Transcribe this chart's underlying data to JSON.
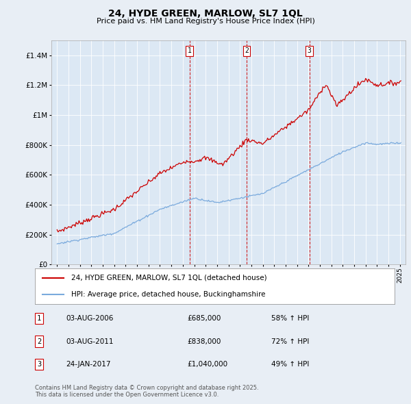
{
  "title": "24, HYDE GREEN, MARLOW, SL7 1QL",
  "subtitle": "Price paid vs. HM Land Registry's House Price Index (HPI)",
  "background_color": "#e8eef5",
  "plot_bg_color": "#dce8f4",
  "red_line_color": "#cc0000",
  "blue_line_color": "#7aaadd",
  "sale_markers": [
    {
      "label": "1",
      "date": "03-AUG-2006",
      "price": 685000,
      "pct": "58% ↑ HPI",
      "x_year": 2006.58
    },
    {
      "label": "2",
      "date": "03-AUG-2011",
      "price": 838000,
      "pct": "72% ↑ HPI",
      "x_year": 2011.58
    },
    {
      "label": "3",
      "date": "24-JAN-2017",
      "price": 1040000,
      "pct": "49% ↑ HPI",
      "x_year": 2017.07
    }
  ],
  "legend_entries": [
    "24, HYDE GREEN, MARLOW, SL7 1QL (detached house)",
    "HPI: Average price, detached house, Buckinghamshire"
  ],
  "footer": "Contains HM Land Registry data © Crown copyright and database right 2025.\nThis data is licensed under the Open Government Licence v3.0.",
  "xlim": [
    1994.5,
    2025.5
  ],
  "ylim": [
    0,
    1500000
  ],
  "yticks": [
    0,
    200000,
    400000,
    600000,
    800000,
    1000000,
    1200000,
    1400000
  ],
  "ytick_labels": [
    "£0",
    "£200K",
    "£400K",
    "£600K",
    "£800K",
    "£1M",
    "£1.2M",
    "£1.4M"
  ]
}
